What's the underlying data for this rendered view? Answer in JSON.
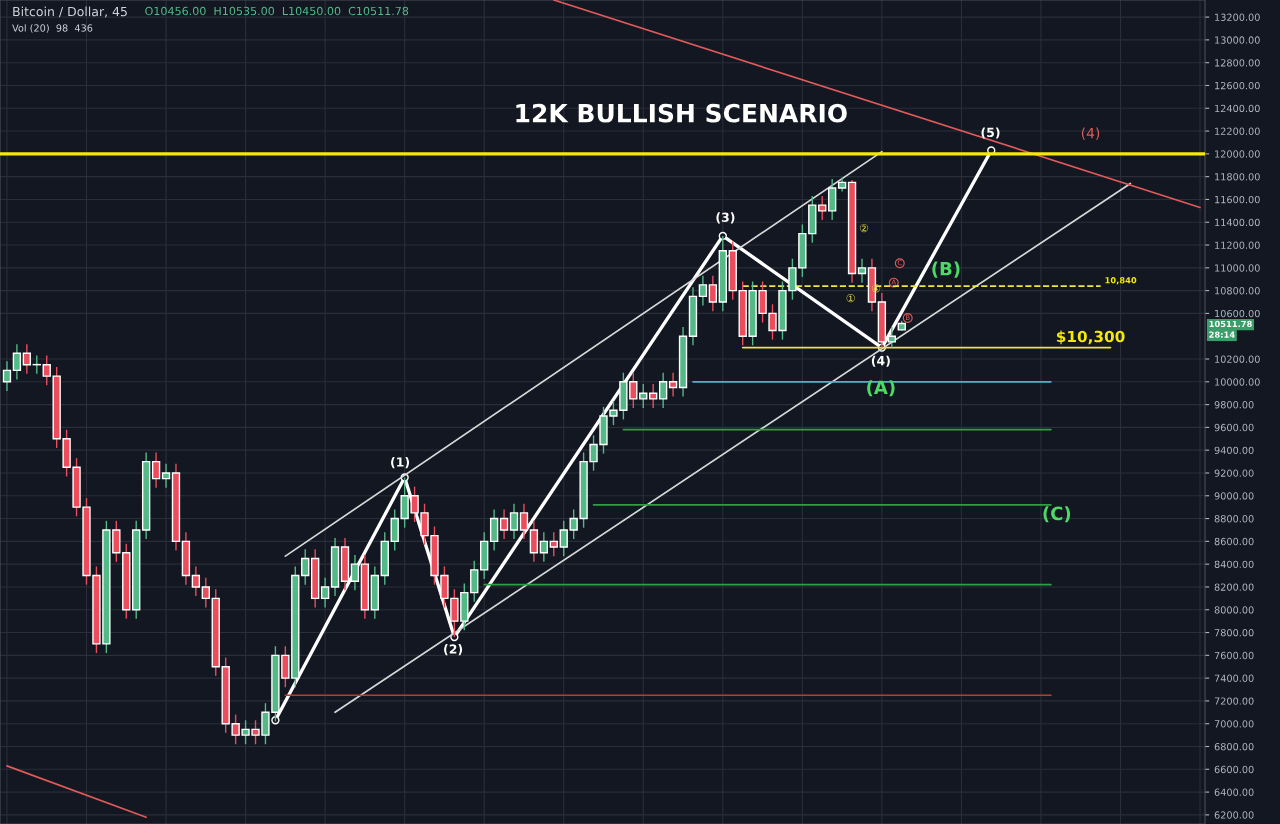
{
  "chart_data": {
    "type": "candlestick",
    "title": "Bitcoin / Dollar, 45",
    "subtitle": "O10456.00  H10535.00  L10450.00  C10511.78",
    "categories": [
      null,
      null,
      null,
      null,
      null,
      null,
      null,
      null,
      null,
      null,
      null,
      null,
      null,
      null,
      null,
      null,
      null,
      null,
      null,
      null,
      null,
      null,
      null,
      null,
      null,
      null,
      null,
      null,
      null,
      null,
      null,
      null,
      null,
      null,
      null,
      null,
      null,
      null,
      null,
      null,
      null,
      null,
      null,
      null,
      null,
      null,
      null,
      null,
      null,
      null,
      null,
      null,
      null,
      null,
      null,
      null,
      null,
      null,
      null,
      null,
      null,
      null,
      null,
      null,
      null,
      null,
      null,
      null,
      null,
      null,
      null,
      null,
      null,
      null,
      null,
      null,
      null,
      null,
      null,
      null,
      null,
      null,
      null,
      null,
      null,
      null,
      null,
      null,
      null,
      null,
      null,
      null,
      null,
      null,
      null,
      null,
      null,
      null,
      null,
      null,
      null,
      null,
      null,
      null,
      null,
      null,
      null,
      null,
      null,
      null,
      null,
      null,
      null,
      null,
      null,
      null,
      null,
      null,
      null,
      null,
      null
    ],
    "ohlc": [
      [
        10000,
        10180,
        9920,
        10100
      ],
      [
        10100,
        10330,
        10020,
        10250
      ],
      [
        10250,
        10330,
        10070,
        10150
      ],
      [
        10150,
        10230,
        10070,
        10150
      ],
      [
        10150,
        10230,
        9970,
        10050
      ],
      [
        10050,
        10130,
        9420,
        9500
      ],
      [
        9500,
        9580,
        9170,
        9250
      ],
      [
        9250,
        9330,
        8820,
        8900
      ],
      [
        8900,
        8980,
        8220,
        8300
      ],
      [
        8300,
        8380,
        7620,
        7700
      ],
      [
        7700,
        8780,
        7620,
        8700
      ],
      [
        8700,
        8780,
        8420,
        8500
      ],
      [
        8500,
        8580,
        7920,
        8000
      ],
      [
        8000,
        8780,
        7920,
        8700
      ],
      [
        8700,
        9380,
        8620,
        9300
      ],
      [
        9300,
        9380,
        9070,
        9150
      ],
      [
        9150,
        9280,
        9070,
        9200
      ],
      [
        9200,
        9280,
        8520,
        8600
      ],
      [
        8600,
        8680,
        8220,
        8300
      ],
      [
        8300,
        8380,
        8120,
        8200
      ],
      [
        8200,
        8280,
        8020,
        8100
      ],
      [
        8100,
        8180,
        7420,
        7500
      ],
      [
        7500,
        7580,
        6920,
        7000
      ],
      [
        7000,
        7080,
        6820,
        6900
      ],
      [
        6900,
        7030,
        6820,
        6950
      ],
      [
        6950,
        7030,
        6820,
        6900
      ],
      [
        6900,
        7180,
        6820,
        7100
      ],
      [
        7100,
        7680,
        7020,
        7600
      ],
      [
        7600,
        7680,
        7320,
        7400
      ],
      [
        7400,
        8380,
        7320,
        8300
      ],
      [
        8300,
        8530,
        8220,
        8450
      ],
      [
        8450,
        8530,
        8020,
        8100
      ],
      [
        8100,
        8280,
        8020,
        8200
      ],
      [
        8200,
        8630,
        8120,
        8550
      ],
      [
        8550,
        8630,
        8170,
        8250
      ],
      [
        8250,
        8480,
        8170,
        8400
      ],
      [
        8400,
        8480,
        7920,
        8000
      ],
      [
        8000,
        8380,
        7920,
        8300
      ],
      [
        8300,
        8680,
        8220,
        8600
      ],
      [
        8600,
        8880,
        8520,
        8800
      ],
      [
        8800,
        9160,
        8720,
        9000
      ],
      [
        9000,
        9080,
        8770,
        8850
      ],
      [
        8850,
        8930,
        8570,
        8650
      ],
      [
        8650,
        8730,
        8220,
        8300
      ],
      [
        8300,
        8380,
        8020,
        8100
      ],
      [
        8100,
        8180,
        7760,
        7900
      ],
      [
        7900,
        8230,
        7820,
        8150
      ],
      [
        8150,
        8430,
        8070,
        8350
      ],
      [
        8350,
        8680,
        8270,
        8600
      ],
      [
        8600,
        8880,
        8520,
        8800
      ],
      [
        8800,
        8880,
        8620,
        8700
      ],
      [
        8700,
        8930,
        8620,
        8850
      ],
      [
        8850,
        8930,
        8620,
        8700
      ],
      [
        8700,
        8780,
        8420,
        8500
      ],
      [
        8500,
        8680,
        8420,
        8600
      ],
      [
        8600,
        8680,
        8470,
        8550
      ],
      [
        8550,
        8780,
        8470,
        8700
      ],
      [
        8700,
        8880,
        8620,
        8800
      ],
      [
        8800,
        9380,
        8720,
        9300
      ],
      [
        9300,
        9530,
        9220,
        9450
      ],
      [
        9450,
        9780,
        9370,
        9700
      ],
      [
        9700,
        9830,
        9620,
        9750
      ],
      [
        9750,
        10080,
        9670,
        10000
      ],
      [
        10000,
        10080,
        9770,
        9850
      ],
      [
        9850,
        9980,
        9770,
        9900
      ],
      [
        9900,
        9980,
        9770,
        9850
      ],
      [
        9850,
        10080,
        9770,
        10000
      ],
      [
        10000,
        10080,
        9870,
        9950
      ],
      [
        9950,
        10480,
        9870,
        10400
      ],
      [
        10400,
        10830,
        10320,
        10750
      ],
      [
        10750,
        10930,
        10670,
        10850
      ],
      [
        10850,
        10930,
        10620,
        10700
      ],
      [
        10700,
        11280,
        10620,
        11150
      ],
      [
        11150,
        11230,
        10720,
        10800
      ],
      [
        10800,
        10880,
        10320,
        10400
      ],
      [
        10400,
        10880,
        10320,
        10800
      ],
      [
        10800,
        10880,
        10520,
        10600
      ],
      [
        10600,
        10680,
        10370,
        10450
      ],
      [
        10450,
        10880,
        10370,
        10800
      ],
      [
        10800,
        11080,
        10720,
        11000
      ],
      [
        11000,
        11380,
        10920,
        11300
      ],
      [
        11300,
        11630,
        11220,
        11550
      ],
      [
        11550,
        11630,
        11420,
        11500
      ],
      [
        11500,
        11780,
        11420,
        11700
      ],
      [
        11700,
        11790,
        11670,
        11750
      ],
      [
        11750,
        11770,
        10870,
        10950
      ],
      [
        10950,
        11080,
        10870,
        11000
      ],
      [
        11000,
        11080,
        10620,
        10700
      ],
      [
        10700,
        10780,
        10300,
        10350
      ],
      [
        10350,
        10480,
        10300,
        10400
      ],
      [
        10456,
        10535,
        10450,
        10511.78
      ],
      null,
      null,
      null,
      null,
      null,
      null,
      null,
      null,
      null,
      null,
      null,
      null,
      null,
      null,
      null,
      null,
      null,
      null,
      null,
      null,
      null,
      null,
      null,
      null,
      null,
      null,
      null,
      null,
      null,
      null
    ],
    "series": [
      {
        "type": "line",
        "color": "#ffffff",
        "marker": "circle",
        "values": [
          null,
          null,
          null,
          null,
          null,
          null,
          null,
          null,
          null,
          null,
          null,
          null,
          null,
          null,
          null,
          null,
          null,
          null,
          null,
          null,
          null,
          null,
          null,
          null,
          null,
          null,
          null,
          7030,
          null,
          null,
          null,
          null,
          null,
          null,
          null,
          null,
          null,
          null,
          null,
          null,
          9160,
          null,
          null,
          null,
          null,
          7760,
          null,
          null,
          null,
          null,
          null,
          null,
          null,
          null,
          null,
          null,
          null,
          null,
          null,
          null,
          null,
          null,
          null,
          null,
          null,
          null,
          null,
          null,
          null,
          null,
          null,
          null,
          11280,
          null,
          null,
          null,
          null,
          null,
          null,
          null,
          null,
          null,
          null,
          null,
          null,
          null,
          null,
          null,
          10300,
          null,
          null,
          null,
          null,
          null,
          null,
          null,
          null,
          null,
          null,
          12030,
          null,
          null,
          null,
          null,
          null,
          null,
          null,
          null,
          null,
          null,
          null,
          null,
          null,
          null,
          null,
          null,
          null,
          null,
          null,
          null,
          null
        ]
      },
      {
        "type": "line",
        "color": "#d8d8d8",
        "values": [
          null,
          null,
          null,
          null,
          null,
          null,
          null,
          null,
          null,
          null,
          null,
          null,
          null,
          null,
          null,
          null,
          null,
          null,
          null,
          null,
          null,
          null,
          null,
          null,
          null,
          null,
          null,
          null,
          8470,
          null,
          null,
          null,
          null,
          null,
          null,
          null,
          null,
          null,
          null,
          null,
          null,
          null,
          null,
          null,
          null,
          null,
          null,
          null,
          null,
          null,
          null,
          null,
          null,
          null,
          null,
          null,
          null,
          null,
          null,
          null,
          null,
          null,
          null,
          null,
          null,
          null,
          null,
          null,
          null,
          null,
          null,
          null,
          null,
          null,
          null,
          null,
          null,
          null,
          null,
          null,
          null,
          null,
          null,
          null,
          null,
          null,
          null,
          null,
          12020,
          null,
          null,
          null,
          null,
          null,
          null,
          null,
          null,
          null,
          null,
          null,
          null,
          null,
          null,
          null,
          null,
          null,
          null,
          null,
          null,
          null,
          null,
          null,
          null,
          null,
          null,
          null,
          null,
          null,
          null,
          null,
          null
        ]
      },
      {
        "type": "line",
        "color": "#d8d8d8",
        "values": [
          null,
          null,
          null,
          null,
          null,
          null,
          null,
          null,
          null,
          null,
          null,
          null,
          null,
          null,
          null,
          null,
          null,
          null,
          null,
          null,
          null,
          null,
          null,
          null,
          null,
          null,
          null,
          null,
          null,
          null,
          null,
          null,
          null,
          7100,
          null,
          null,
          null,
          null,
          null,
          null,
          null,
          null,
          null,
          null,
          null,
          null,
          null,
          null,
          null,
          null,
          null,
          null,
          null,
          null,
          null,
          null,
          null,
          null,
          null,
          null,
          null,
          null,
          null,
          null,
          null,
          null,
          null,
          null,
          null,
          null,
          null,
          null,
          null,
          null,
          null,
          null,
          null,
          null,
          null,
          null,
          null,
          null,
          null,
          null,
          null,
          null,
          null,
          null,
          null,
          null,
          null,
          null,
          null,
          null,
          null,
          null,
          null,
          null,
          null,
          null,
          null,
          null,
          null,
          null,
          null,
          null,
          null,
          null,
          null,
          null,
          null,
          null,
          null,
          11740,
          null,
          null,
          null,
          null,
          null,
          null,
          null
        ]
      },
      {
        "type": "line",
        "color": "#e05a5a",
        "values": [
          null,
          null,
          null,
          null,
          null,
          null,
          null,
          null,
          null,
          null,
          null,
          null,
          null,
          null,
          null,
          null,
          null,
          null,
          null,
          null,
          null,
          null,
          null,
          null,
          null,
          null,
          null,
          null,
          null,
          null,
          null,
          null,
          null,
          null,
          null,
          null,
          null,
          null,
          null,
          null,
          null,
          null,
          null,
          null,
          null,
          null,
          null,
          null,
          null,
          null,
          null,
          null,
          null,
          null,
          null,
          13350,
          null,
          null,
          null,
          null,
          null,
          null,
          null,
          null,
          null,
          null,
          null,
          null,
          null,
          null,
          null,
          null,
          null,
          null,
          null,
          null,
          null,
          null,
          null,
          null,
          null,
          null,
          null,
          null,
          null,
          null,
          null,
          null,
          null,
          null,
          null,
          null,
          null,
          null,
          null,
          null,
          null,
          null,
          null,
          null,
          null,
          null,
          null,
          null,
          null,
          null,
          null,
          null,
          null,
          null,
          null,
          null,
          null,
          null,
          null,
          null,
          null,
          null,
          null,
          null,
          11530
        ]
      },
      {
        "type": "line",
        "color": "#e05a5a",
        "values": [
          6630,
          null,
          null,
          null,
          null,
          null,
          null,
          null,
          null,
          null,
          null,
          null,
          null,
          null,
          6180,
          null,
          null,
          null,
          null,
          null,
          null,
          null,
          null,
          null,
          null,
          null,
          null,
          null,
          null,
          null,
          null,
          null,
          null,
          null,
          null,
          null,
          null,
          null,
          null,
          null,
          null,
          null,
          null,
          null,
          null,
          null,
          null,
          null,
          null,
          null,
          null,
          null,
          null,
          null,
          null,
          null,
          null,
          null,
          null,
          null,
          null,
          null,
          null,
          null,
          null,
          null,
          null,
          null,
          null,
          null,
          null,
          null,
          null,
          null,
          null,
          null,
          null,
          null,
          null,
          null,
          null,
          null,
          null,
          null,
          null,
          null,
          null,
          null,
          null,
          null,
          null,
          null,
          null,
          null,
          null,
          null,
          null,
          null,
          null,
          null,
          null,
          null,
          null,
          null,
          null,
          null,
          null,
          null,
          null,
          null,
          null,
          null,
          null,
          null,
          null,
          null,
          null,
          null,
          null,
          null,
          null
        ]
      },
      {
        "type": "line",
        "color": "#f0e442",
        "values": [
          null,
          null,
          null,
          null,
          null,
          null,
          null,
          null,
          null,
          null,
          null,
          null,
          null,
          null,
          null,
          null,
          null,
          null,
          null,
          null,
          null,
          null,
          null,
          null,
          null,
          null,
          null,
          null,
          null,
          null,
          null,
          null,
          null,
          null,
          null,
          null,
          null,
          null,
          null,
          null,
          null,
          null,
          null,
          null,
          null,
          null,
          null,
          null,
          null,
          null,
          null,
          null,
          null,
          null,
          null,
          null,
          null,
          null,
          null,
          null,
          null,
          null,
          null,
          null,
          null,
          null,
          null,
          null,
          null,
          null,
          null,
          null,
          null,
          null,
          10300,
          null,
          null,
          null,
          null,
          null,
          null,
          null,
          null,
          null,
          null,
          null,
          null,
          null,
          null,
          null,
          null,
          null,
          null,
          null,
          null,
          null,
          null,
          null,
          null,
          null,
          null,
          null,
          null,
          null,
          null,
          null,
          null,
          null,
          null,
          null,
          null,
          10300,
          null,
          null,
          null,
          null,
          null,
          null,
          null,
          null,
          null
        ]
      },
      {
        "type": "line",
        "color": "#f0e442",
        "line_style": "dashed",
        "values": [
          null,
          null,
          null,
          null,
          null,
          null,
          null,
          null,
          null,
          null,
          null,
          null,
          null,
          null,
          null,
          null,
          null,
          null,
          null,
          null,
          null,
          null,
          null,
          null,
          null,
          null,
          null,
          null,
          null,
          null,
          null,
          null,
          null,
          null,
          null,
          null,
          null,
          null,
          null,
          null,
          null,
          null,
          null,
          null,
          null,
          null,
          null,
          null,
          null,
          null,
          null,
          null,
          null,
          null,
          null,
          null,
          null,
          null,
          null,
          null,
          null,
          null,
          null,
          null,
          null,
          null,
          null,
          null,
          null,
          null,
          null,
          null,
          null,
          null,
          10840,
          null,
          null,
          null,
          null,
          null,
          null,
          null,
          null,
          null,
          null,
          null,
          null,
          null,
          null,
          null,
          null,
          null,
          null,
          null,
          null,
          null,
          null,
          null,
          null,
          null,
          null,
          null,
          null,
          null,
          null,
          null,
          null,
          null,
          null,
          null,
          10840,
          null,
          null,
          null,
          null,
          null,
          null,
          null,
          null,
          null,
          null
        ]
      },
      {
        "type": "line",
        "color": "#4fb3c8",
        "values": [
          null,
          null,
          null,
          null,
          null,
          null,
          null,
          null,
          null,
          null,
          null,
          null,
          null,
          null,
          null,
          null,
          null,
          null,
          null,
          null,
          null,
          null,
          null,
          null,
          null,
          null,
          null,
          null,
          null,
          null,
          null,
          null,
          null,
          null,
          null,
          null,
          null,
          null,
          null,
          null,
          null,
          null,
          null,
          null,
          null,
          null,
          null,
          null,
          null,
          null,
          null,
          null,
          null,
          null,
          null,
          null,
          null,
          null,
          null,
          null,
          null,
          null,
          null,
          null,
          null,
          null,
          null,
          null,
          null,
          10000,
          null,
          null,
          null,
          null,
          null,
          null,
          null,
          null,
          null,
          null,
          null,
          null,
          null,
          null,
          null,
          null,
          null,
          null,
          null,
          null,
          null,
          null,
          null,
          null,
          null,
          null,
          null,
          null,
          null,
          null,
          null,
          null,
          null,
          null,
          null,
          10000,
          null,
          null,
          null,
          null,
          null,
          null,
          null,
          null,
          null,
          null,
          null,
          null,
          null,
          null,
          null
        ]
      },
      {
        "type": "line",
        "color": "#2ea043",
        "values": [
          null,
          null,
          null,
          null,
          null,
          null,
          null,
          null,
          null,
          null,
          null,
          null,
          null,
          null,
          null,
          null,
          null,
          null,
          null,
          null,
          null,
          null,
          null,
          null,
          null,
          null,
          null,
          null,
          null,
          null,
          null,
          null,
          null,
          null,
          null,
          null,
          null,
          null,
          null,
          null,
          null,
          null,
          null,
          null,
          null,
          null,
          null,
          null,
          null,
          null,
          null,
          null,
          null,
          null,
          null,
          null,
          null,
          null,
          null,
          null,
          null,
          null,
          9580,
          null,
          null,
          null,
          null,
          null,
          null,
          null,
          null,
          null,
          null,
          null,
          null,
          null,
          null,
          null,
          null,
          null,
          null,
          null,
          null,
          null,
          null,
          null,
          null,
          null,
          null,
          null,
          null,
          null,
          null,
          null,
          null,
          null,
          null,
          null,
          null,
          null,
          null,
          null,
          null,
          null,
          null,
          9580,
          null,
          null,
          null,
          null,
          null,
          null,
          null,
          null,
          null,
          null,
          null,
          null,
          null,
          null,
          null
        ]
      },
      {
        "type": "line",
        "color": "#2ea043",
        "values": [
          null,
          null,
          null,
          null,
          null,
          null,
          null,
          null,
          null,
          null,
          null,
          null,
          null,
          null,
          null,
          null,
          null,
          null,
          null,
          null,
          null,
          null,
          null,
          null,
          null,
          null,
          null,
          null,
          null,
          null,
          null,
          null,
          null,
          null,
          null,
          null,
          null,
          null,
          null,
          null,
          null,
          null,
          null,
          null,
          null,
          null,
          null,
          null,
          null,
          null,
          null,
          null,
          null,
          null,
          null,
          null,
          null,
          null,
          null,
          8920,
          null,
          null,
          null,
          null,
          null,
          null,
          null,
          null,
          null,
          null,
          null,
          null,
          null,
          null,
          null,
          null,
          null,
          null,
          null,
          null,
          null,
          null,
          null,
          null,
          null,
          null,
          null,
          null,
          null,
          null,
          null,
          null,
          null,
          null,
          null,
          null,
          null,
          null,
          null,
          null,
          null,
          null,
          null,
          null,
          null,
          8920,
          null,
          null,
          null,
          null,
          null,
          null,
          null,
          null,
          null,
          null,
          null,
          null,
          null,
          null,
          null
        ]
      },
      {
        "type": "line",
        "color": "#2ea043",
        "values": [
          null,
          null,
          null,
          null,
          null,
          null,
          null,
          null,
          null,
          null,
          null,
          null,
          null,
          null,
          null,
          null,
          null,
          null,
          null,
          null,
          null,
          null,
          null,
          null,
          null,
          null,
          null,
          null,
          null,
          null,
          null,
          null,
          null,
          null,
          null,
          null,
          null,
          null,
          null,
          null,
          null,
          null,
          null,
          null,
          null,
          null,
          null,
          null,
          8220,
          null,
          null,
          null,
          null,
          null,
          null,
          null,
          null,
          null,
          null,
          null,
          null,
          null,
          null,
          null,
          null,
          null,
          null,
          null,
          null,
          null,
          null,
          null,
          null,
          null,
          null,
          null,
          null,
          null,
          null,
          null,
          null,
          null,
          null,
          null,
          null,
          null,
          null,
          null,
          null,
          null,
          null,
          null,
          null,
          null,
          null,
          null,
          null,
          null,
          null,
          null,
          null,
          null,
          null,
          null,
          null,
          8220,
          null,
          null,
          null,
          null,
          null,
          null,
          null,
          null,
          null,
          null,
          null,
          null,
          null,
          null,
          null
        ]
      },
      {
        "type": "line",
        "color": "#c0392b",
        "values": [
          null,
          null,
          null,
          null,
          null,
          null,
          null,
          null,
          null,
          null,
          null,
          null,
          null,
          null,
          null,
          null,
          null,
          null,
          null,
          null,
          null,
          null,
          null,
          null,
          null,
          null,
          null,
          null,
          7250,
          null,
          null,
          null,
          null,
          null,
          null,
          null,
          null,
          null,
          null,
          null,
          null,
          null,
          null,
          null,
          null,
          null,
          null,
          null,
          null,
          null,
          null,
          null,
          null,
          null,
          null,
          null,
          null,
          null,
          null,
          null,
          null,
          null,
          null,
          null,
          null,
          null,
          null,
          null,
          null,
          null,
          null,
          null,
          null,
          null,
          null,
          null,
          null,
          null,
          null,
          null,
          null,
          null,
          null,
          null,
          null,
          null,
          null,
          null,
          null,
          null,
          null,
          null,
          null,
          null,
          null,
          null,
          null,
          null,
          null,
          null,
          null,
          null,
          null,
          null,
          null,
          7250,
          null,
          null,
          null,
          null,
          null,
          null,
          null,
          null,
          null,
          null,
          null,
          null,
          null,
          null,
          null
        ]
      }
    ],
    "ref_lines": [
      {
        "axis": "y",
        "value": 12000,
        "color": "#f5e90a"
      }
    ],
    "annotations": [
      "Vol (20)  98  436",
      "12K BULLISH SCENARIO",
      "(1)",
      "(2)",
      "(3)",
      "(4)",
      "(5)",
      "(4)",
      "(A)",
      "(B)",
      "(C)",
      "$10,300",
      "10,840",
      "①",
      "②",
      "④",
      {
        "text": "A",
        "y": 10870
      },
      {
        "text": "C",
        "y": 11040
      },
      {
        "text": "B",
        "y": 10560
      },
      "10511.78",
      "28:14"
    ],
    "ylim": [
      6120,
      13350
    ],
    "yticks": [
      {
        "value": 6200,
        "label": "6200.00"
      },
      {
        "value": 6400,
        "label": "6400.00"
      },
      {
        "value": 6600,
        "label": "6600.00"
      },
      {
        "value": 6800,
        "label": "6800.00"
      },
      {
        "value": 7000,
        "label": "7000.00"
      },
      {
        "value": 7200,
        "label": "7200.00"
      },
      {
        "value": 7400,
        "label": "7400.00"
      },
      {
        "value": 7600,
        "label": "7600.00"
      },
      {
        "value": 7800,
        "label": "7800.00"
      },
      {
        "value": 8000,
        "label": "8000.00"
      },
      {
        "value": 8200,
        "label": "8200.00"
      },
      {
        "value": 8400,
        "label": "8400.00"
      },
      {
        "value": 8600,
        "label": "8600.00"
      },
      {
        "value": 8800,
        "label": "8800.00"
      },
      {
        "value": 9000,
        "label": "9000.00"
      },
      {
        "value": 9200,
        "label": "9200.00"
      },
      {
        "value": 9400,
        "label": "9400.00"
      },
      {
        "value": 9600,
        "label": "9600.00"
      },
      {
        "value": 9800,
        "label": "9800.00"
      },
      {
        "value": 10000,
        "label": "10000.00"
      },
      {
        "value": 10200,
        "label": "10200.00"
      },
      {
        "value": 10600,
        "label": "10600.00"
      },
      {
        "value": 10800,
        "label": "10800.00"
      },
      {
        "value": 11000,
        "label": "11000.00"
      },
      {
        "value": 11200,
        "label": "11200.00"
      },
      {
        "value": 11400,
        "label": "11400.00"
      },
      {
        "value": 11600,
        "label": "11600.00"
      },
      {
        "value": 11800,
        "label": "11800.00"
      },
      {
        "value": 12000,
        "label": "12000.00"
      },
      {
        "value": 12200,
        "label": "12200.00"
      },
      {
        "value": 12400,
        "label": "12400.00"
      },
      {
        "value": 12600,
        "label": "12600.00"
      },
      {
        "value": 12800,
        "label": "12800.00"
      },
      {
        "value": 13000,
        "label": "13000.00"
      },
      {
        "value": 13200,
        "label": "13200.00"
      }
    ],
    "tick_labels": "y",
    "grid": true
  }
}
